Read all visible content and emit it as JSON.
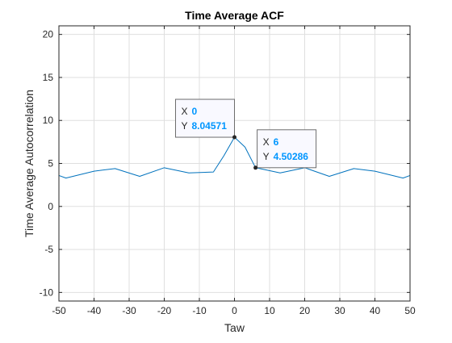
{
  "chart_data": {
    "type": "line",
    "title": "Time Average ACF",
    "xlabel": "Taw",
    "ylabel": "Time Average Autocorrelation",
    "xlim": [
      -50,
      50
    ],
    "ylim": [
      -11,
      21
    ],
    "xticks": [
      -50,
      -40,
      -30,
      -20,
      -10,
      0,
      10,
      20,
      30,
      40,
      50
    ],
    "yticks": [
      -10,
      -5,
      0,
      5,
      10,
      15,
      20
    ],
    "grid": true,
    "series": [
      {
        "color": "#0072bd",
        "x": [
          -50,
          -48,
          -40,
          -34,
          -27,
          -20,
          -13,
          -6,
          -3,
          0,
          3,
          6,
          13,
          20,
          27,
          34,
          40,
          48,
          50
        ],
        "y": [
          3.6,
          3.3,
          4.1,
          4.4,
          3.5,
          4.5,
          3.9,
          4.0,
          5.9,
          8.04571,
          6.9,
          4.50286,
          3.9,
          4.5,
          3.5,
          4.4,
          4.1,
          3.3,
          3.6
        ]
      }
    ],
    "datatips": [
      {
        "x_label": "X",
        "y_label": "Y",
        "x": "0",
        "y": "8.04571",
        "px": 0,
        "py": 8.04571,
        "anchor": "left"
      },
      {
        "x_label": "X",
        "y_label": "Y",
        "x": "6",
        "y": "4.50286",
        "px": 6,
        "py": 4.50286,
        "anchor": "right"
      }
    ]
  }
}
